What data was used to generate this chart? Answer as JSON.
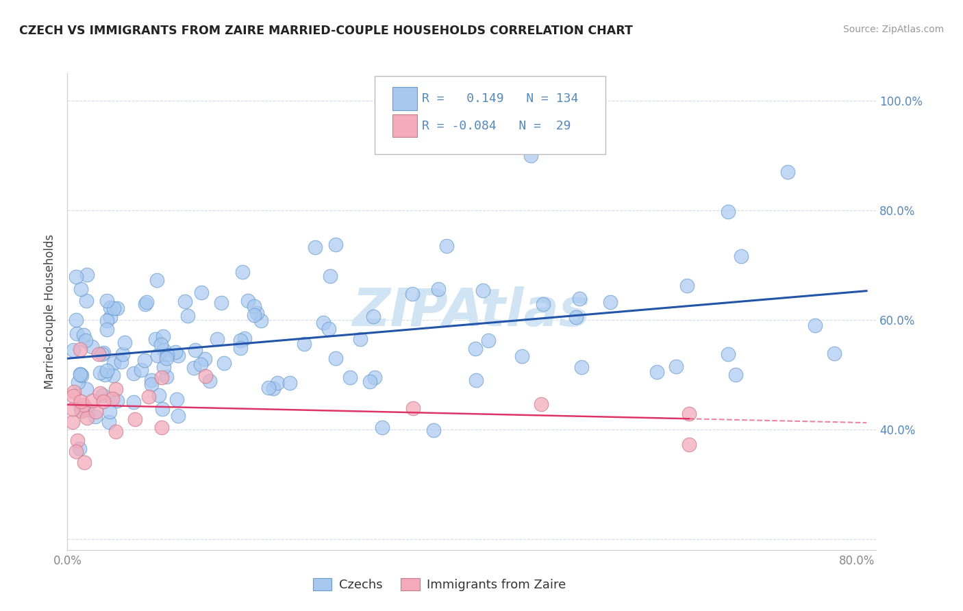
{
  "title": "CZECH VS IMMIGRANTS FROM ZAIRE MARRIED-COUPLE HOUSEHOLDS CORRELATION CHART",
  "source": "Source: ZipAtlas.com",
  "ylabel": "Married-couple Households",
  "xlim": [
    0.0,
    0.82
  ],
  "ylim": [
    0.18,
    1.05
  ],
  "xtick_vals": [
    0.0,
    0.1,
    0.2,
    0.3,
    0.4,
    0.5,
    0.6,
    0.7,
    0.8
  ],
  "xticklabels": [
    "0.0%",
    "",
    "",
    "",
    "",
    "",
    "",
    "",
    "80.0%"
  ],
  "ytick_vals": [
    0.2,
    0.4,
    0.6,
    0.8,
    1.0
  ],
  "yticklabels_right": [
    "",
    "40.0%",
    "60.0%",
    "80.0%",
    "100.0%"
  ],
  "czech_R": 0.149,
  "czech_N": 134,
  "zaire_R": -0.084,
  "zaire_N": 29,
  "blue_color": "#A8C8F0",
  "blue_edge_color": "#6699CC",
  "pink_color": "#F4AABB",
  "pink_edge_color": "#CC7788",
  "blue_line_color": "#2255AA",
  "pink_line_color": "#DD3366",
  "legend_label_czech": "Czechs",
  "legend_label_zaire": "Immigrants from Zaire",
  "watermark": "ZIPAtlas",
  "watermark_color": "#D0E4F4",
  "grid_color": "#CCDDE8",
  "bg_color": "#FFFFFF",
  "title_color": "#222222",
  "source_color": "#999999",
  "ylabel_color": "#444444",
  "tick_color": "#5588BB",
  "xtick_color": "#888888"
}
